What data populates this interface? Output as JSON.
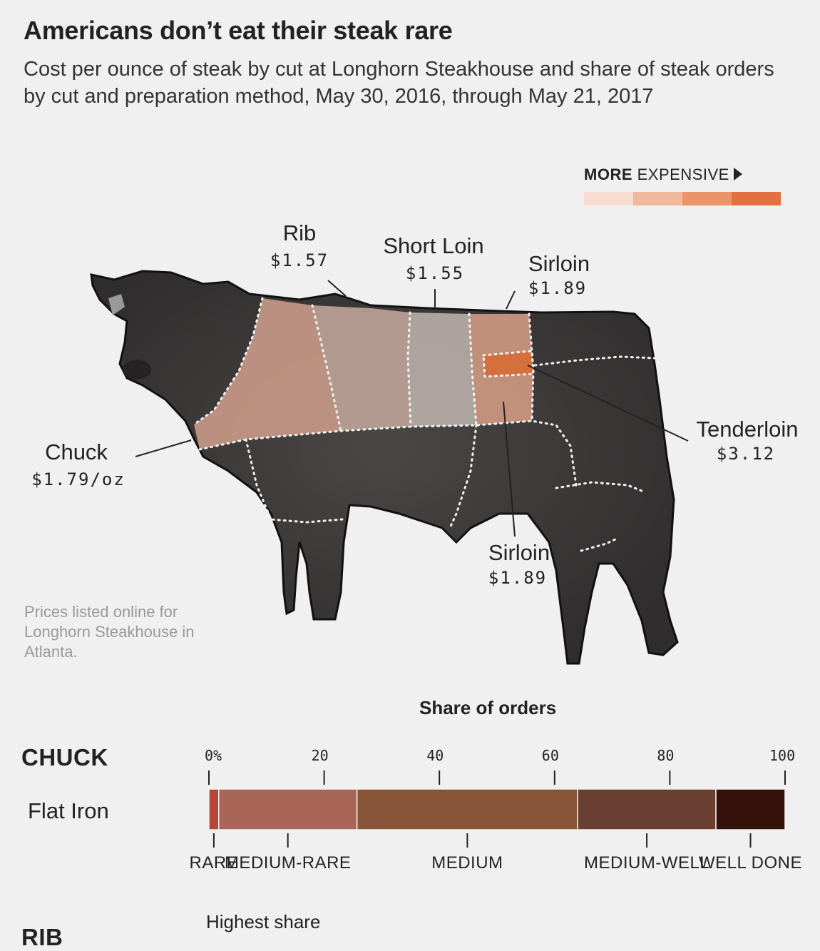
{
  "title": "Americans don’t eat their steak rare",
  "subtitle": "Cost per ounce of steak by cut at Longhorn Steakhouse and share of steak orders by cut and preparation method, May 30, 2016, through May 21, 2017",
  "legend": {
    "bold": "MORE",
    "text": "EXPENSIVE",
    "swatches": [
      "#f8dcd0",
      "#f2b89c",
      "#ec9467",
      "#e47040"
    ]
  },
  "cuts": {
    "rib": {
      "name": "Rib",
      "price": "$1.57"
    },
    "short_loin": {
      "name": "Short Loin",
      "price": "$1.55"
    },
    "sirloin_top": {
      "name": "Sirloin",
      "price": "$1.89"
    },
    "tenderloin": {
      "name": "Tenderloin",
      "price": "$3.12"
    },
    "chuck": {
      "name": "Chuck",
      "price": "$1.79/oz"
    },
    "sirloin_bottom": {
      "name": "Sirloin",
      "price": "$1.89"
    }
  },
  "cut_colors": {
    "chuck": "#c99a88",
    "rib": "#bfa49a",
    "short_loin": "#b9afaa",
    "sirloin": "#cf9a82",
    "tenderloin": "#d4703e"
  },
  "note": "Prices listed online for Longhorn Steakhouse in Atlanta.",
  "orders_title": "Share of orders",
  "section_chuck": "CHUCK",
  "section_rib": "RIB",
  "row_label": "Flat Iron",
  "highest": "Highest share",
  "chart_data": {
    "type": "bar",
    "title": "Share of orders",
    "categories": [
      "Flat Iron"
    ],
    "xlim": [
      0,
      100
    ],
    "x_ticks": [
      "0%",
      "20",
      "40",
      "60",
      "80",
      "100"
    ],
    "series": [
      {
        "name": "RARE",
        "values": [
          1.7
        ],
        "color": "#b8443a"
      },
      {
        "name": "MEDIUM-RARE",
        "values": [
          24.0
        ],
        "color": "#a96557"
      },
      {
        "name": "MEDIUM",
        "values": [
          38.3
        ],
        "color": "#885437"
      },
      {
        "name": "MEDIUM-WELL",
        "values": [
          24.0
        ],
        "color": "#683f31"
      },
      {
        "name": "WELL DONE",
        "values": [
          12.0
        ],
        "color": "#341109"
      }
    ]
  }
}
